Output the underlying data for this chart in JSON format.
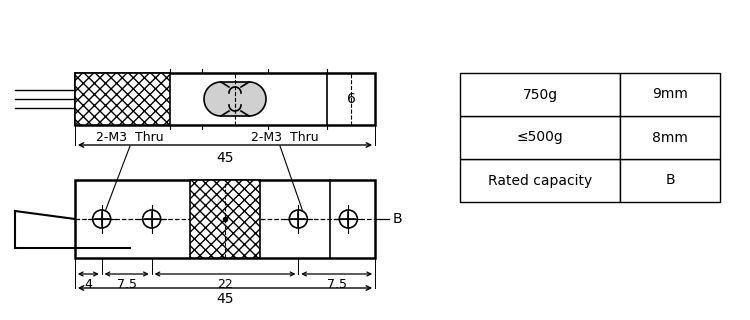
{
  "bg_color": "#ffffff",
  "line_color": "#000000",
  "table_data": [
    [
      "Rated capacity",
      "B"
    ],
    [
      "≤500g",
      "8mm"
    ],
    [
      "750g",
      "9mm"
    ]
  ],
  "dim_45_top": "45",
  "dim_6": "6",
  "dim_45_bot": "45",
  "dim_4": "4",
  "dim_7_5_left": "7.5",
  "dim_22": "22",
  "dim_7_5_right": "7.5",
  "label_2m3_left": "2-M3  Thru",
  "label_2m3_right": "2-M3  Thru",
  "label_B": "B"
}
